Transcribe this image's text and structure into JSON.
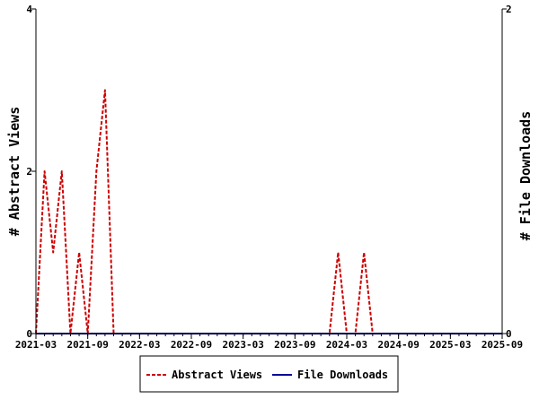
{
  "chart_data": {
    "type": "line",
    "x_start": "2021-03",
    "x_end": "2025-09",
    "x_tick_labels": [
      "2021-03",
      "2021-09",
      "2022-03",
      "2022-09",
      "2023-03",
      "2023-09",
      "2024-03",
      "2024-09",
      "2025-03",
      "2025-09"
    ],
    "y_left": {
      "label": "# Abstract Views",
      "ylim": [
        0,
        4
      ],
      "ticks": [
        "0",
        "2",
        "4"
      ]
    },
    "y_right": {
      "label": "# File Downloads",
      "ylim": [
        0,
        2
      ],
      "ticks": [
        "0",
        "2"
      ]
    },
    "series": [
      {
        "name": "Abstract Views",
        "axis": "left",
        "color": "#cc0000",
        "dash": "dashed",
        "points": [
          [
            "2021-03",
            0
          ],
          [
            "2021-04",
            2
          ],
          [
            "2021-05",
            1
          ],
          [
            "2021-06",
            2
          ],
          [
            "2021-07",
            0
          ],
          [
            "2021-08",
            1
          ],
          [
            "2021-09",
            0
          ],
          [
            "2021-10",
            2
          ],
          [
            "2021-11",
            3
          ],
          [
            "2021-12",
            0
          ],
          [
            "2024-01",
            0
          ],
          [
            "2024-02",
            1
          ],
          [
            "2024-03",
            0
          ],
          [
            "2024-04",
            0
          ],
          [
            "2024-05",
            1
          ],
          [
            "2024-06",
            0
          ]
        ]
      },
      {
        "name": "File Downloads",
        "axis": "right",
        "color": "#000099",
        "dash": "solid",
        "points": [
          [
            "2021-03",
            0
          ],
          [
            "2025-09",
            0
          ]
        ]
      }
    ],
    "legend": {
      "placement": "bottom",
      "items": [
        {
          "label": "Abstract Views",
          "color": "#cc0000",
          "style": "dashed"
        },
        {
          "label": "File Downloads",
          "color": "#000099",
          "style": "solid"
        }
      ]
    },
    "grid": false
  }
}
